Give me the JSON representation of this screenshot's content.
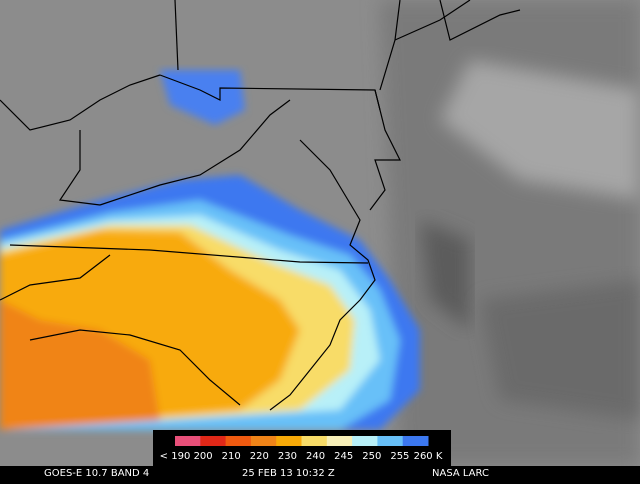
{
  "colorbar": {
    "labels": [
      "< 190",
      "200",
      "210",
      "220",
      "230",
      "240",
      "245",
      "250",
      "255",
      "260 K"
    ],
    "colors": [
      "#e8507a",
      "#e02818",
      "#f05a10",
      "#f08418",
      "#f8aa08",
      "#f8dc68",
      "#f8f0b8",
      "#b8f0f8",
      "#68c0f8",
      "#3c78f0"
    ]
  },
  "footer": {
    "product": "GOES-E 10.7 BAND 4",
    "timestamp": "25 FEB 13 10:32 Z",
    "source": "NASA LARC"
  }
}
